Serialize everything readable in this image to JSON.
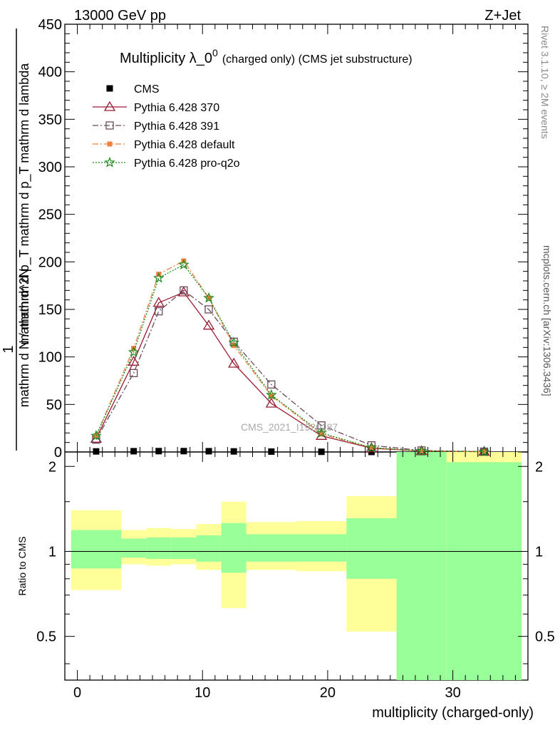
{
  "header": {
    "left": "13000 GeV pp",
    "right": "Z+Jet"
  },
  "side": {
    "rivet": "Rivet 3.1.10, ≥ 2M events",
    "mcplots": "mcplots.cern.ch [arXiv:1306.3436]"
  },
  "watermark": "CMS_2021_I1920187",
  "chart_data": {
    "type": "line",
    "title": "Multiplicity λ_0",
    "title_sup": "0",
    "title_suffix": "(charged only) (CMS jet substructure)",
    "ylabel_top": "1",
    "ylabel_den": "mathrm d N / mathrm d p_T mathrm d p_T mathrm d lambda",
    "ylabel_num": "mathrm d^2N",
    "xlabel": "multiplicity (charged-only)",
    "ratio_ylabel": "Ratio to CMS",
    "xlim": [
      -1,
      36
    ],
    "ylim": [
      0,
      450
    ],
    "yticks": [
      0,
      50,
      100,
      150,
      200,
      250,
      300,
      350,
      400,
      450
    ],
    "xticks": [
      0,
      10,
      20,
      30
    ],
    "ratio_ylim": [
      0.35,
      2.25
    ],
    "ratio_yticks": [
      0.5,
      1,
      2
    ],
    "bins": [
      [
        -0.5,
        3.5
      ],
      [
        3.5,
        5.5
      ],
      [
        5.5,
        7.5
      ],
      [
        7.5,
        9.5
      ],
      [
        9.5,
        11.5
      ],
      [
        11.5,
        13.5
      ],
      [
        13.5,
        17.5
      ],
      [
        17.5,
        21.5
      ],
      [
        21.5,
        25.5
      ],
      [
        25.5,
        29.5
      ],
      [
        29.5,
        35.5
      ]
    ],
    "series": [
      {
        "name": "CMS",
        "color": "#000000",
        "x": [
          1.5,
          4.5,
          6.5,
          8.5,
          10.5,
          12.5,
          15.5,
          19.5,
          23.5,
          27.5,
          32.5
        ],
        "values": [
          0.6,
          0.8,
          0.9,
          0.9,
          0.8,
          0.6,
          0.4,
          0.2,
          0.05,
          0.01,
          0.003
        ]
      },
      {
        "name": "Pythia 6.428 370",
        "color": "#9a1b32",
        "x": [
          1.5,
          4.5,
          6.5,
          8.5,
          10.5,
          12.5,
          15.5,
          19.5,
          23.5,
          27.5,
          32.5
        ],
        "values": [
          14,
          95,
          157,
          168,
          133,
          93,
          51,
          17,
          4,
          1,
          0.3
        ]
      },
      {
        "name": "Pythia 6.428 391",
        "color": "#6a4a5c",
        "x": [
          1.5,
          4.5,
          6.5,
          8.5,
          10.5,
          12.5,
          15.5,
          19.5,
          23.5,
          27.5,
          32.5
        ],
        "values": [
          13,
          83,
          148,
          170,
          150,
          116,
          71,
          28,
          7,
          1.6,
          0.4
        ]
      },
      {
        "name": "Pythia 6.428 default",
        "color": "#f08040",
        "x": [
          1.5,
          4.5,
          6.5,
          8.5,
          10.5,
          12.5,
          15.5,
          19.5,
          23.5,
          27.5,
          32.5
        ],
        "values": [
          17,
          109,
          187,
          201,
          162,
          112,
          59,
          19,
          4.5,
          1,
          0.3
        ]
      },
      {
        "name": "Pythia 6.428 pro-q2o",
        "color": "#1a8a1a",
        "x": [
          1.5,
          4.5,
          6.5,
          8.5,
          10.5,
          12.5,
          15.5,
          19.5,
          23.5,
          27.5,
          32.5
        ],
        "values": [
          17,
          105,
          183,
          197,
          162,
          115,
          60,
          20,
          4.5,
          1,
          0.3
        ]
      }
    ],
    "ratio_bands": {
      "inner_color": "#99ff99",
      "outer_color": "#ffff99",
      "inner_low": [
        0.87,
        0.95,
        0.94,
        0.94,
        0.92,
        0.84,
        0.92,
        0.92,
        0.8,
        0.35,
        0.35
      ],
      "inner_high": [
        1.19,
        1.11,
        1.12,
        1.12,
        1.14,
        1.26,
        1.15,
        1.15,
        1.31,
        2.25,
        2.07
      ],
      "outer_low": [
        0.73,
        0.9,
        0.89,
        0.9,
        0.86,
        0.63,
        0.86,
        0.85,
        0.52,
        0.35,
        0.35
      ],
      "outer_high": [
        1.4,
        1.19,
        1.21,
        1.2,
        1.25,
        1.5,
        1.27,
        1.28,
        1.57,
        2.25,
        2.25
      ]
    }
  }
}
